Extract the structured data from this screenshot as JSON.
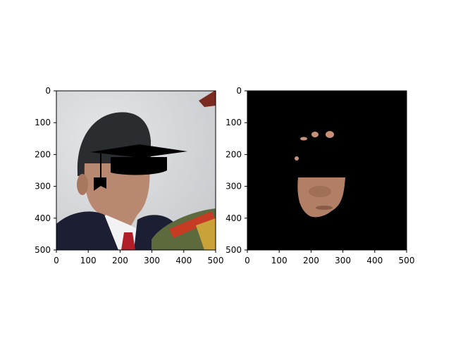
{
  "panels": [
    {
      "id": "left",
      "content": "photo-with-graduation-cap-mask",
      "x_ticks": [
        "0",
        "100",
        "200",
        "300",
        "400",
        "500"
      ],
      "y_ticks": [
        "0",
        "100",
        "200",
        "300",
        "400",
        "500"
      ]
    },
    {
      "id": "right",
      "content": "segmented-face-on-black",
      "x_ticks": [
        "0",
        "100",
        "200",
        "300",
        "400",
        "500"
      ],
      "y_ticks": [
        "0",
        "100",
        "200",
        "300",
        "400",
        "500"
      ]
    }
  ],
  "colors": {
    "background": "#ffffff",
    "mask_black": "#000000",
    "photo_backdrop": "#d4d6d8",
    "hair": "#2a2c30",
    "skin": "#b88870",
    "suit": "#1c1f33",
    "shirt": "#f2f2f4",
    "tie": "#b01f28",
    "uniform_green": "#5d6a3e",
    "epaulette_red": "#c53b24",
    "gold": "#c9a33a"
  }
}
